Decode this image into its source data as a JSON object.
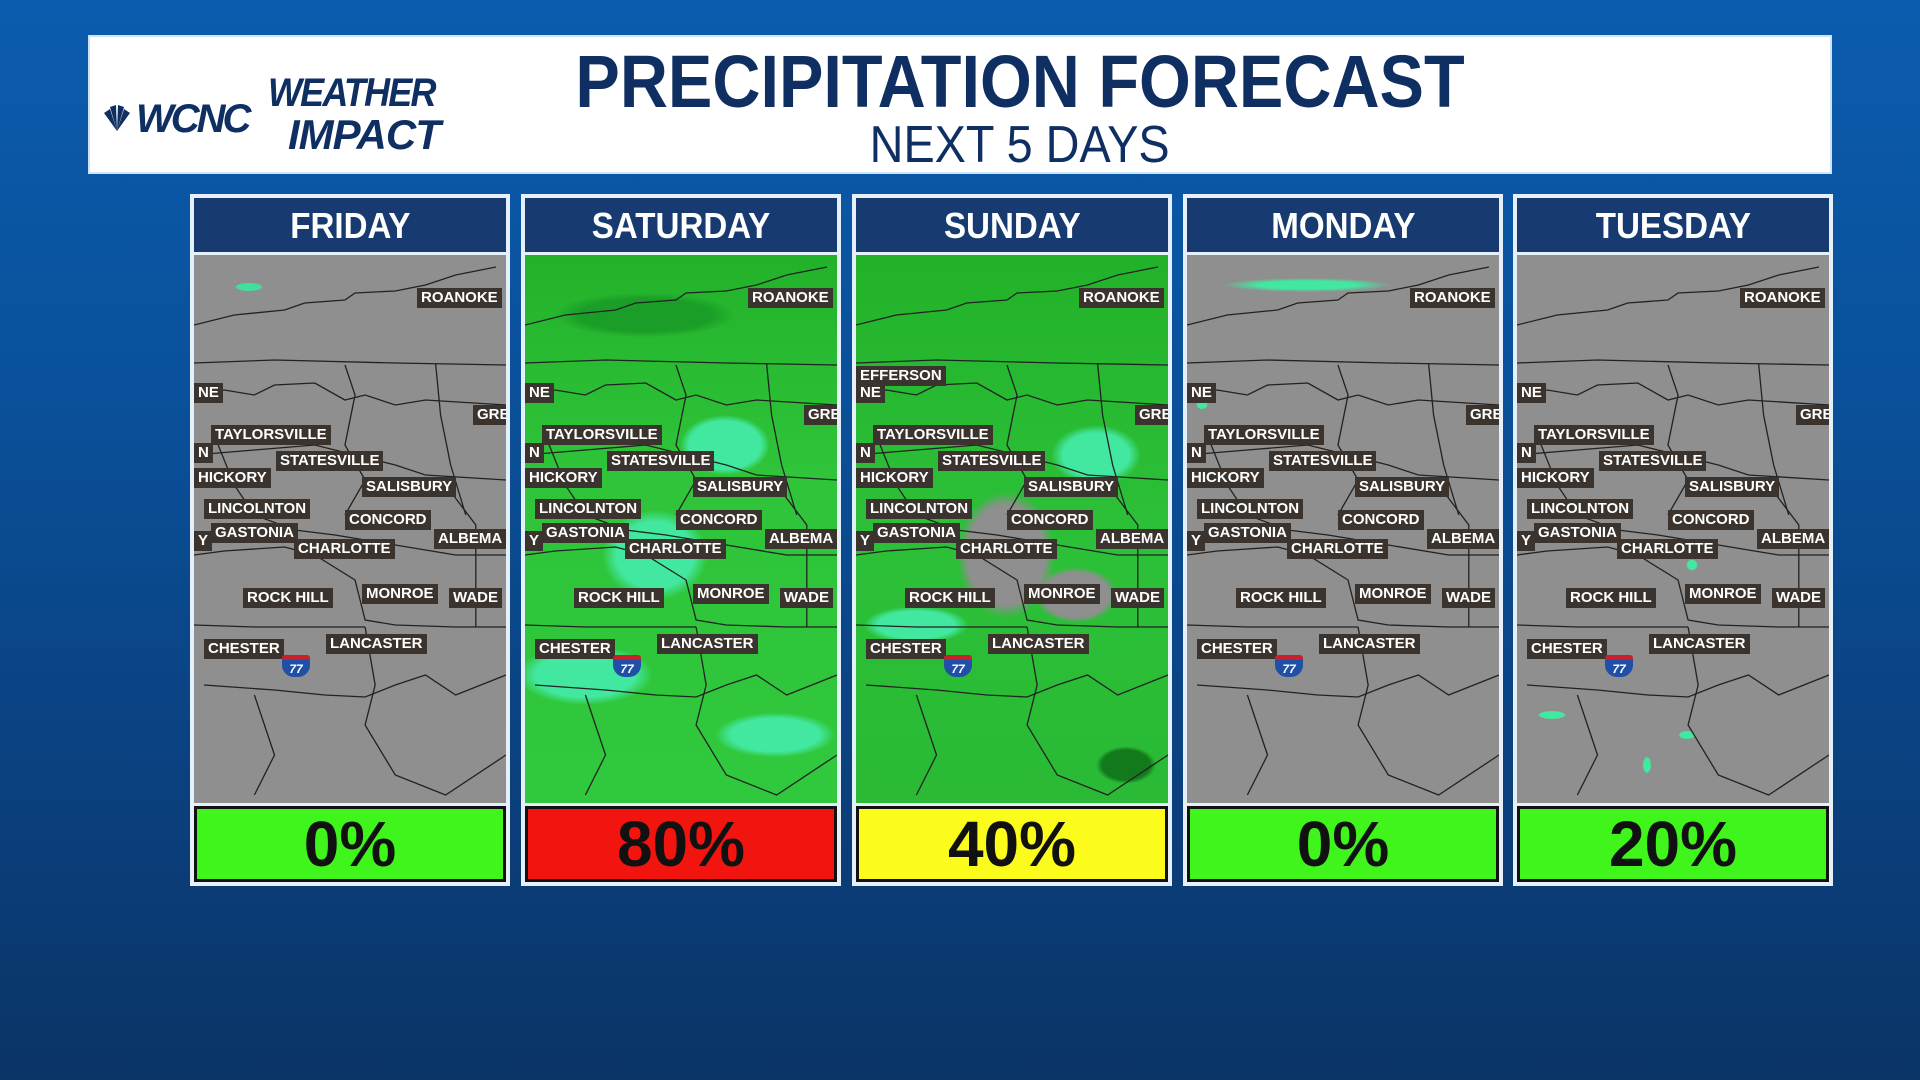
{
  "header": {
    "logo_station": "WCNC",
    "logo_weather": "WEATHER",
    "logo_impact": "IMPACT",
    "title": "PRECIPITATION FORECAST",
    "subtitle": "NEXT 5 DAYS"
  },
  "map": {
    "labels": [
      "NE",
      "ROANOKE",
      "GRE",
      "TAYLORSVILLE",
      "N",
      "STATESVILLE",
      "HICKORY",
      "SALISBURY",
      "LINCOLNTON",
      "CONCORD",
      "Y",
      "GASTONIA",
      "ALBEMA",
      "CHARLOTTE",
      "ROCK HILL",
      "MONROE",
      "WADE",
      "CHESTER",
      "LANCASTER"
    ],
    "interstate": "77"
  },
  "days": [
    {
      "day": "FRIDAY",
      "chance": "0%",
      "chance_value": 0,
      "color": "#3ff51c",
      "radar": "none",
      "extra_label": ""
    },
    {
      "day": "SATURDAY",
      "chance": "80%",
      "chance_value": 80,
      "color": "#f2150f",
      "radar": "heavy",
      "extra_label": ""
    },
    {
      "day": "SUNDAY",
      "chance": "40%",
      "chance_value": 40,
      "color": "#fbfb1c",
      "radar": "moderate",
      "extra_label": "EFFERSON"
    },
    {
      "day": "MONDAY",
      "chance": "0%",
      "chance_value": 0,
      "color": "#3ff51c",
      "radar": "light",
      "extra_label": ""
    },
    {
      "day": "TUESDAY",
      "chance": "20%",
      "chance_value": 20,
      "color": "#3ff51c",
      "radar": "scattered",
      "extra_label": ""
    }
  ]
}
